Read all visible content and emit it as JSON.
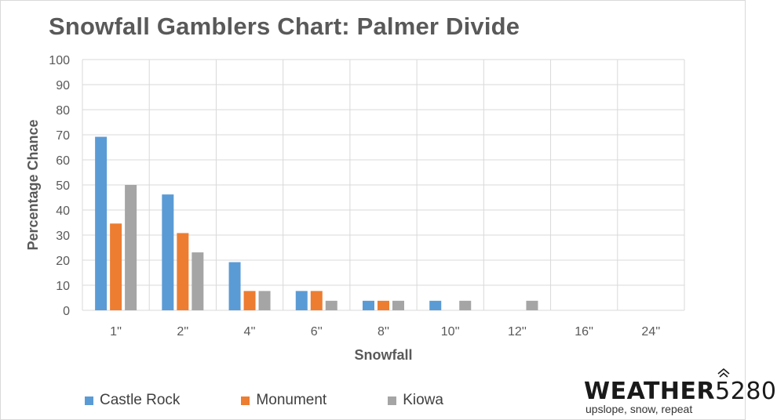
{
  "page": {
    "title": "Snowfall Gamblers Chart: Palmer Divide"
  },
  "chart_data": {
    "type": "bar",
    "title": "Snowfall Gamblers Chart: Palmer Divide",
    "xlabel": "Snowfall",
    "ylabel": "Percentage Chance",
    "ylim": [
      0,
      100
    ],
    "yticks": [
      0,
      10,
      20,
      30,
      40,
      50,
      60,
      70,
      80,
      90,
      100
    ],
    "grid": true,
    "legend_position": "bottom-left",
    "categories": [
      "1''",
      "2''",
      "4''",
      "6''",
      "8''",
      "10''",
      "12''",
      "16''",
      "24''"
    ],
    "series": [
      {
        "name": "Castle Rock",
        "color": "#5b9bd5",
        "values": [
          69.2,
          46.2,
          19.2,
          7.7,
          3.8,
          3.8,
          0,
          0,
          0
        ]
      },
      {
        "name": "Monument",
        "color": "#ed7d31",
        "values": [
          34.6,
          30.8,
          7.7,
          7.7,
          3.8,
          0,
          0,
          0,
          0
        ]
      },
      {
        "name": "Kiowa",
        "color": "#a5a5a5",
        "values": [
          50,
          23.1,
          7.7,
          3.8,
          3.8,
          3.8,
          3.8,
          0,
          0
        ]
      }
    ]
  },
  "logo": {
    "word_bold": "WEATHER",
    "word_light": "5280",
    "tagline": "upslope, snow, repeat",
    "icon": "mountain-chevron-icon"
  }
}
